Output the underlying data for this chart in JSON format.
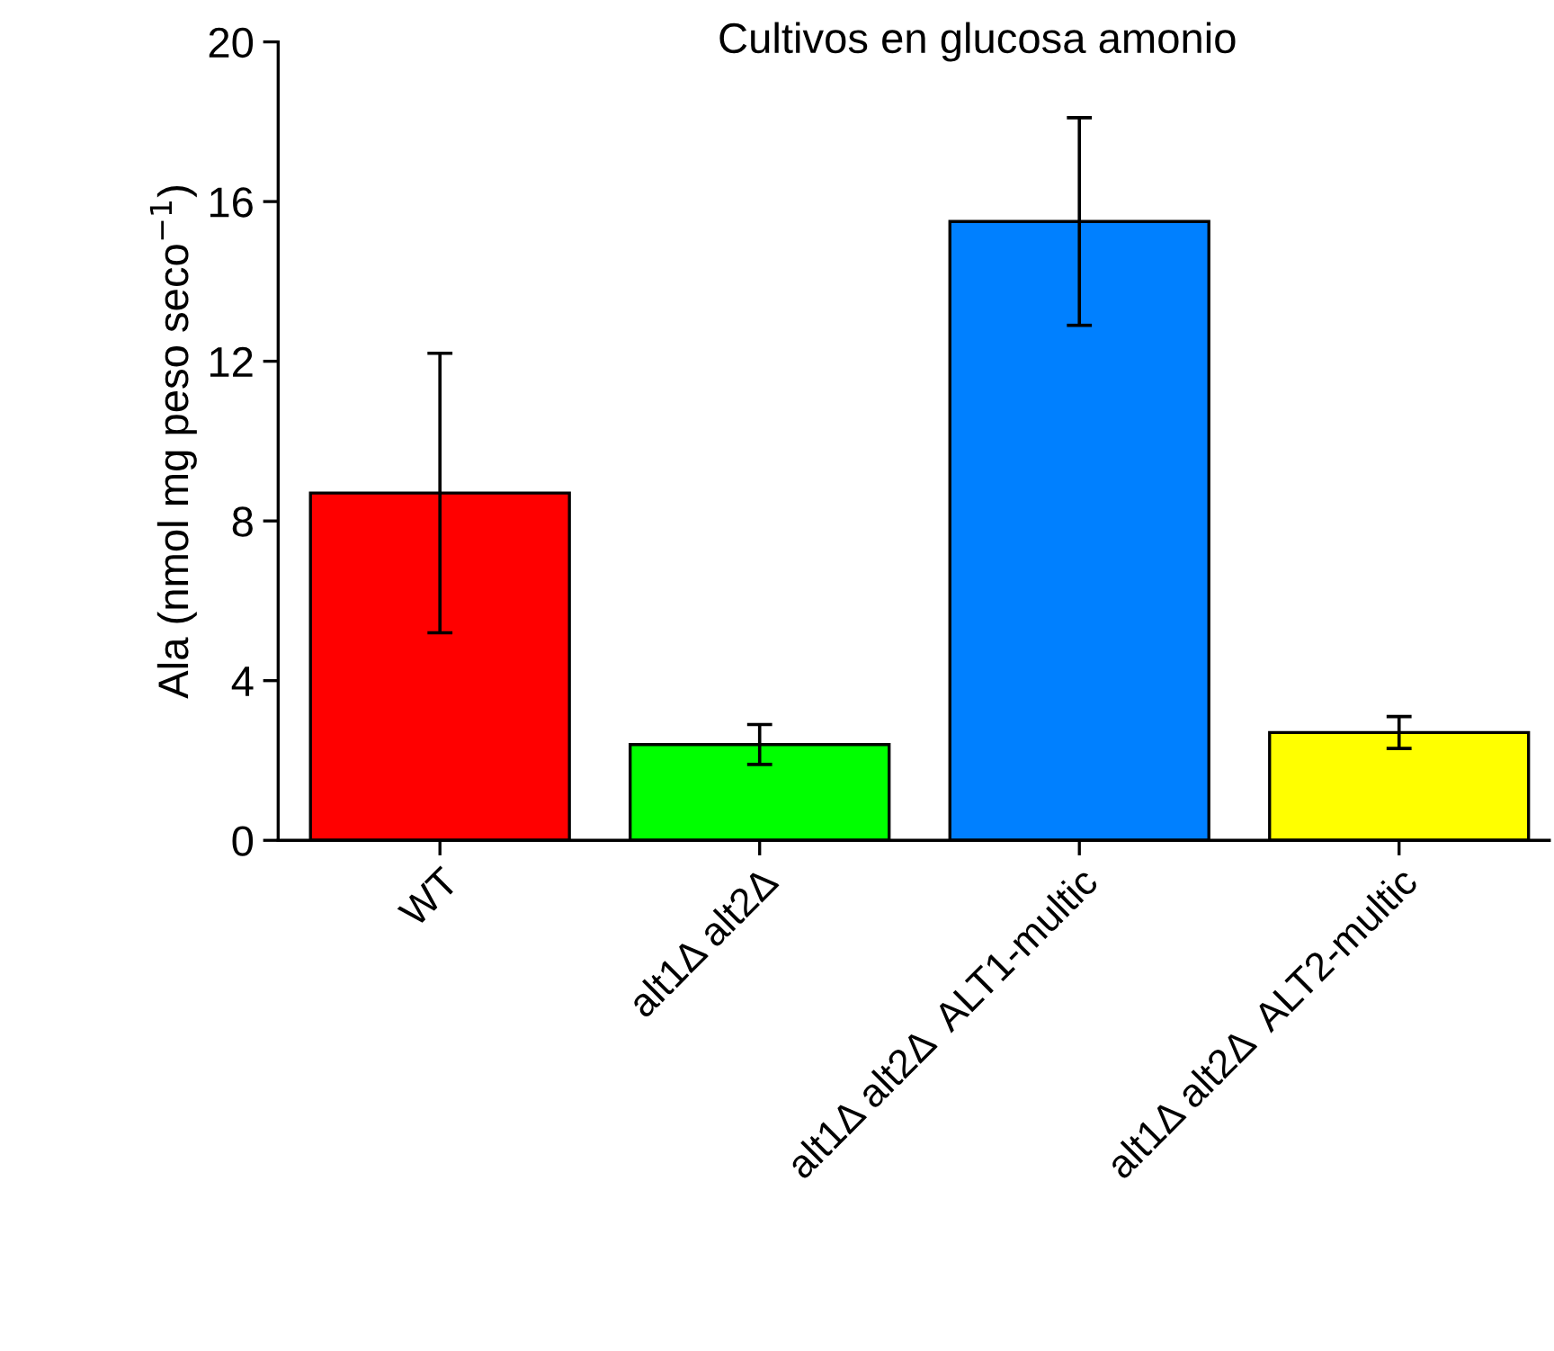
{
  "chart_data": {
    "type": "bar",
    "title": "Cultivos en glucosa amonio",
    "ylabel": "Ala (nmol mg peso seco$^{−1}$)",
    "categories": [
      "WT",
      "alt1Δ alt2Δ",
      "alt1Δ alt2Δ  ALT1-multic",
      "alt1Δ alt2Δ  ALT2-multic"
    ],
    "values": [
      8.7,
      2.4,
      15.5,
      2.7
    ],
    "errors": [
      3.5,
      0.5,
      2.6,
      0.4
    ],
    "colors": [
      "#ff0000",
      "#00ff00",
      "#0080ff",
      "#ffff00"
    ],
    "ylim": [
      0,
      20
    ],
    "yticks": [
      0,
      4,
      8,
      12,
      16,
      20
    ],
    "grid": false,
    "legend": false
  }
}
